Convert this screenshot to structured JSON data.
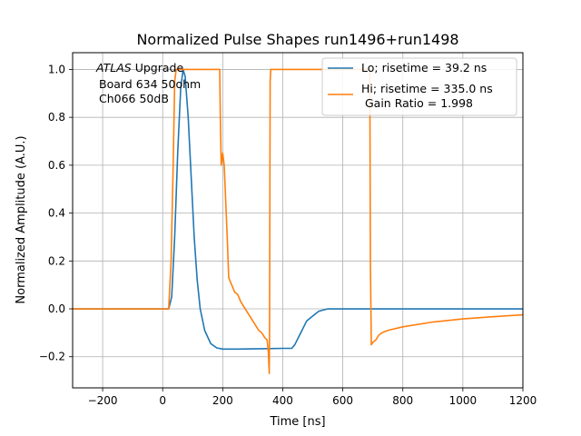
{
  "chart_data": {
    "type": "line",
    "title": "Normalized Pulse Shapes run1496+run1498",
    "xlabel": "Time [ns]",
    "ylabel": "Normalized Amplitude (A.U.)",
    "xlim": [
      -300,
      1200
    ],
    "ylim": [
      -0.33,
      1.07
    ],
    "xticks": [
      -200,
      0,
      200,
      400,
      600,
      800,
      1000,
      1200
    ],
    "xtick_labels": [
      "−200",
      "0",
      "200",
      "400",
      "600",
      "800",
      "1000",
      "1200"
    ],
    "yticks": [
      -0.2,
      0.0,
      0.2,
      0.4,
      0.6,
      0.8,
      1.0
    ],
    "ytick_labels": [
      "−0.2",
      "0.0",
      "0.2",
      "0.4",
      "0.6",
      "0.8",
      "1.0"
    ],
    "grid": true,
    "legend_position": "top-right",
    "annotation": {
      "line1_italic": "ATLAS",
      "line1_rest": " Upgrade",
      "line2": "Board 634 50ohm",
      "line3": "Ch066 50dB"
    },
    "series": [
      {
        "name": "Lo; risetime = 39.2 ns",
        "color": "#1f77b4",
        "x": [
          -300,
          20,
          30,
          40,
          50,
          60,
          68,
          75,
          85,
          95,
          105,
          115,
          125,
          140,
          160,
          180,
          200,
          250,
          300,
          350,
          400,
          430,
          440,
          460,
          480,
          500,
          520,
          550,
          600,
          700,
          1200
        ],
        "y": [
          0.0,
          0.0,
          0.05,
          0.3,
          0.65,
          0.92,
          1.0,
          0.97,
          0.8,
          0.55,
          0.3,
          0.12,
          0.0,
          -0.09,
          -0.145,
          -0.163,
          -0.168,
          -0.168,
          -0.167,
          -0.166,
          -0.165,
          -0.165,
          -0.15,
          -0.1,
          -0.05,
          -0.03,
          -0.01,
          0.0,
          0.0,
          0.0,
          0.0
        ]
      },
      {
        "name": "Hi; risetime = 335.0 ns",
        "color": "#ff7f0e",
        "x": [
          -300,
          20,
          28,
          35,
          40,
          45,
          190,
          192,
          195,
          200,
          205,
          210,
          215,
          220,
          230,
          240,
          250,
          260,
          270,
          280,
          290,
          300,
          310,
          320,
          330,
          340,
          348,
          352,
          355,
          356,
          358,
          360,
          690,
          692,
          695,
          700,
          710,
          720,
          730,
          750,
          800,
          900,
          1000,
          1100,
          1200
        ],
        "y": [
          0.0,
          0.0,
          0.2,
          0.6,
          0.95,
          1.0,
          1.0,
          0.8,
          0.6,
          0.65,
          0.6,
          0.45,
          0.3,
          0.13,
          0.1,
          0.07,
          0.06,
          0.03,
          0.01,
          -0.01,
          -0.03,
          -0.05,
          -0.07,
          -0.09,
          -0.1,
          -0.12,
          -0.13,
          -0.18,
          -0.27,
          -0.1,
          0.95,
          1.0,
          1.0,
          0.2,
          -0.15,
          -0.14,
          -0.13,
          -0.11,
          -0.1,
          -0.09,
          -0.075,
          -0.055,
          -0.042,
          -0.033,
          -0.025
        ]
      }
    ],
    "legend_extra_line": " Gain Ratio = 1.998"
  }
}
